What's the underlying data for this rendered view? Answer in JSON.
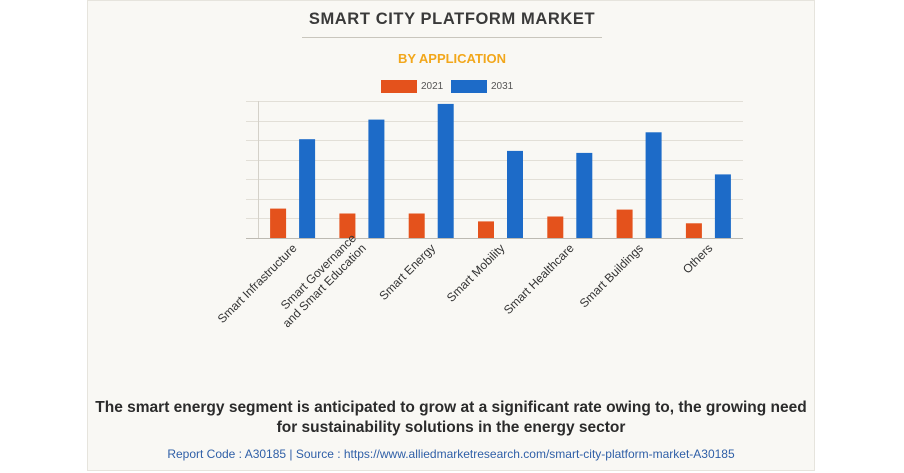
{
  "header": {
    "title": "SMART CITY PLATFORM MARKET",
    "subtitle": "BY APPLICATION"
  },
  "colors": {
    "series_2021": "#e4521c",
    "series_2031": "#1d6bc8",
    "subtitle": "#f2a71b",
    "footer_link": "#2f5fa7"
  },
  "chart_data": {
    "type": "bar",
    "title": "SMART CITY PLATFORM MARKET",
    "subtitle": "BY APPLICATION",
    "categories": [
      "Smart Infrastructure",
      "Smart Governance and Smart Education",
      "Smart Energy",
      "Smart Mobility",
      "Smart Healthcare",
      "Smart Buildings",
      "Others"
    ],
    "category_label_lines": [
      [
        "Smart Infrastructure"
      ],
      [
        "Smart Governance",
        "and Smart Education"
      ],
      [
        "Smart Energy"
      ],
      [
        "Smart Mobility"
      ],
      [
        "Smart Healthcare"
      ],
      [
        "Smart Buildings"
      ],
      [
        "Others"
      ]
    ],
    "series": [
      {
        "name": "2021",
        "values": [
          15,
          12.5,
          12.5,
          8.5,
          11,
          14.5,
          7.5
        ]
      },
      {
        "name": "2031",
        "values": [
          50.5,
          60.5,
          68.5,
          44.5,
          43.5,
          54,
          32.5
        ]
      }
    ],
    "ylim": [
      0,
      70
    ],
    "gridline_step": 10,
    "y_tick_labels_shown": false,
    "grid": true,
    "legend_position": "top-center"
  },
  "footer": {
    "caption": "The smart energy segment is anticipated to grow at a significant rate owing to, the growing need for sustainability solutions in the energy sector",
    "report_text": "Report Code : A30185  |  Source : https://www.alliedmarketresearch.com/smart-city-platform-market-A30185"
  }
}
